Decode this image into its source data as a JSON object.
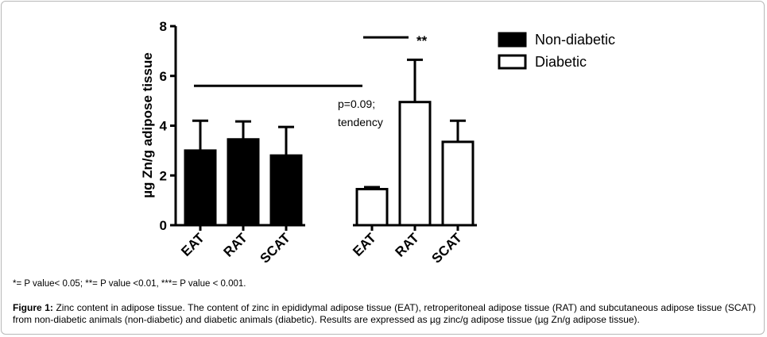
{
  "chart_data": {
    "type": "bar",
    "ylabel": "µg Zn/g adipose tissue",
    "ylim": [
      0,
      8
    ],
    "yticks": [
      "0",
      "2",
      "4",
      "6",
      "8"
    ],
    "groups": [
      {
        "name": "Non-diabetic",
        "fill": "#000000",
        "categories": [
          "EAT",
          "RAT",
          "SCAT"
        ],
        "values": [
          3.0,
          3.45,
          2.8
        ],
        "errors": [
          1.2,
          0.72,
          1.15
        ]
      },
      {
        "name": "Diabetic",
        "fill": "#ffffff",
        "categories": [
          "EAT",
          "RAT",
          "SCAT"
        ],
        "values": [
          1.45,
          4.95,
          3.35
        ],
        "errors": [
          0.08,
          1.7,
          0.85
        ]
      }
    ],
    "legend": {
      "placement": "top-right",
      "entries": [
        {
          "label": "Non-diabetic",
          "fill": "#000000"
        },
        {
          "label": "Diabetic",
          "fill": "#ffffff"
        }
      ]
    },
    "annotations": [
      {
        "text": "**",
        "y": 7.55
      },
      {
        "text": "p=0.09;",
        "y": 5.6
      },
      {
        "text": "tendency",
        "y": 5.6
      }
    ]
  },
  "footnote": "*= P value< 0.05; **= P value <0.01, ***= P value < 0.001.",
  "caption": {
    "label": "Figure 1:",
    "text": " Zinc content in adipose tissue. The content of zinc in epididymal adipose tissue (EAT), retroperitoneal adipose tissue (RAT) and subcutaneous adipose tissue (SCAT) from non-diabetic animals (non-diabetic) and diabetic animals (diabetic). Results are expressed as µg zinc/g adipose tissue (µg Zn/g adipose tissue)."
  }
}
